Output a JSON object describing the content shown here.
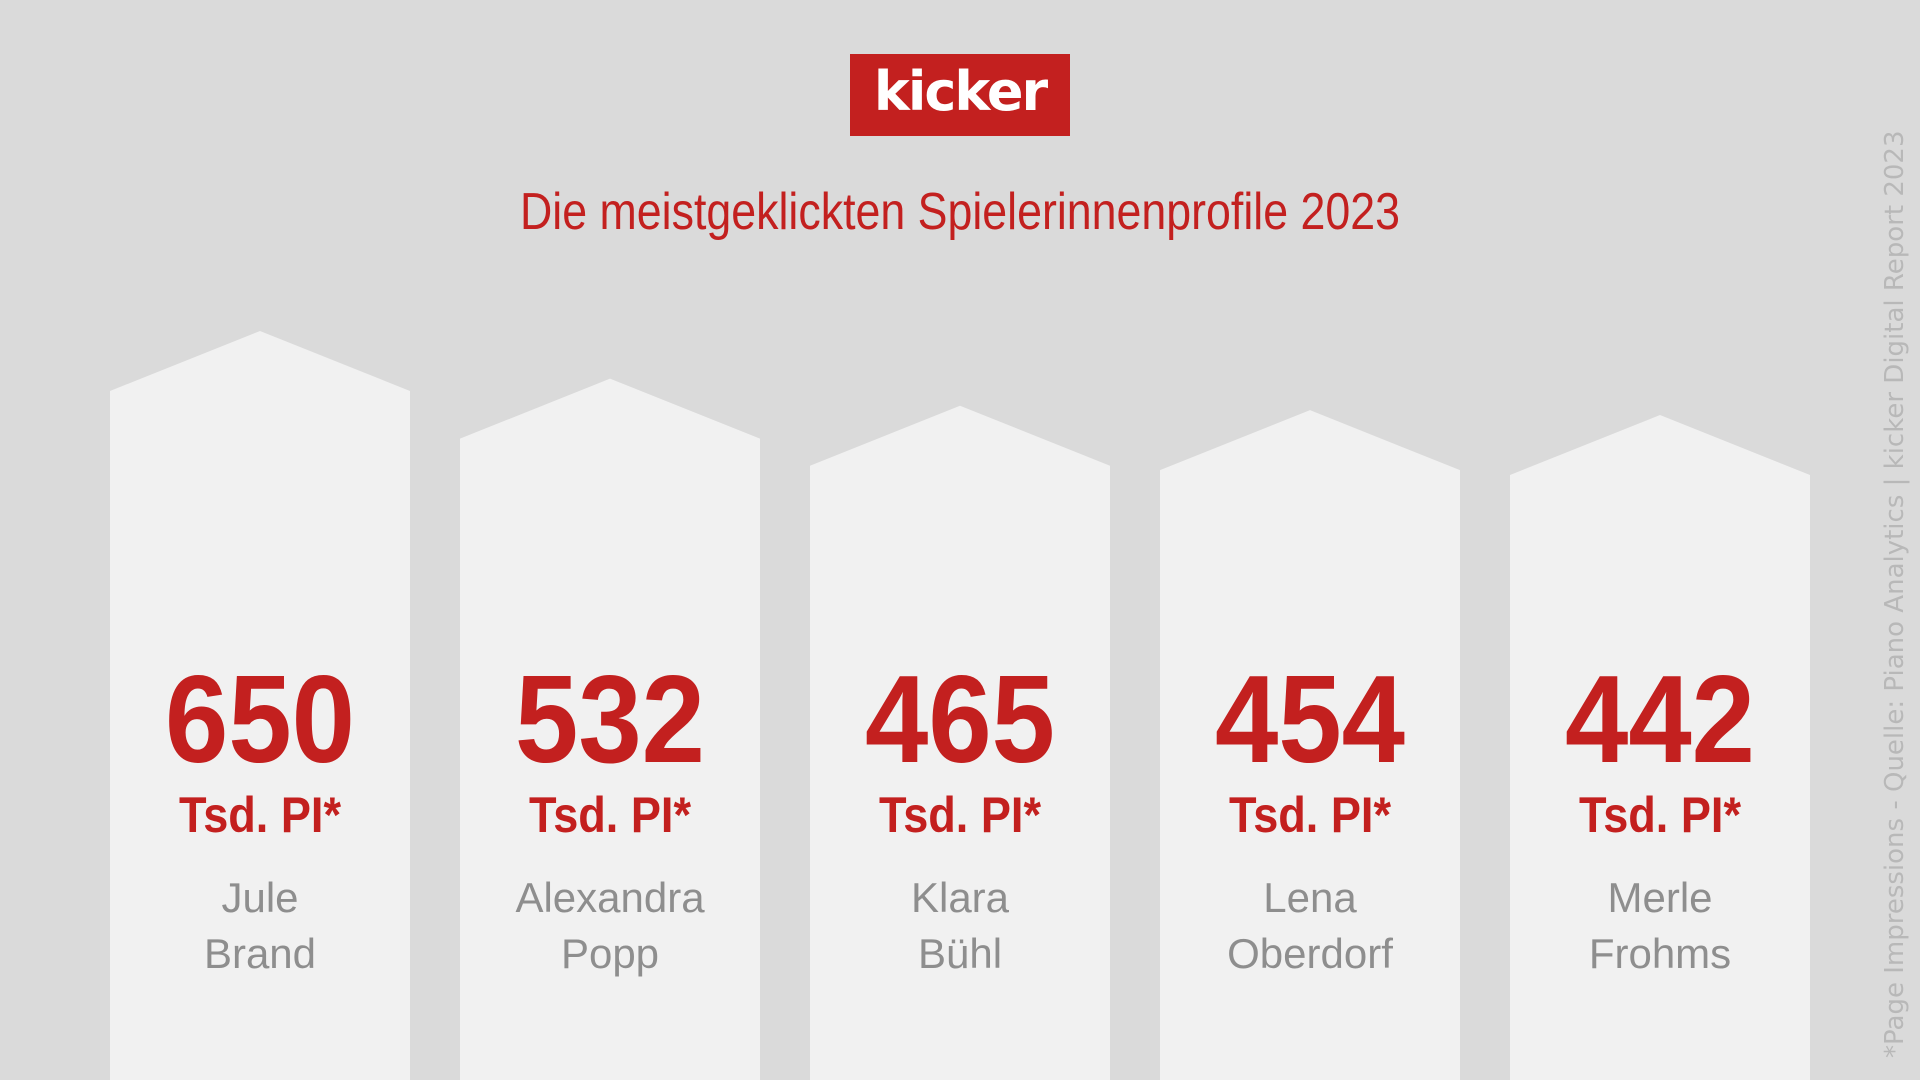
{
  "logo": {
    "text": "kicker"
  },
  "title": "Die meistgeklickten Spielerinnenprofile 2023",
  "source": "*Page Impressions - Quelle: Piano Analytics | kicker Digital Report 2023",
  "colors": {
    "background": "#dadada",
    "accent": "#c3201f",
    "bar": "#f1f1f1",
    "name": "#8e8e8e",
    "source": "#b8b8b8"
  },
  "chart_data": {
    "type": "bar",
    "title": "Die meistgeklickten Spielerinnenprofile 2023",
    "unit": "Tsd. PI*",
    "categories": [
      [
        "Jule",
        "Brand"
      ],
      [
        "Alexandra",
        "Popp"
      ],
      [
        "Klara",
        "Bühl"
      ],
      [
        "Lena",
        "Oberdorf"
      ],
      [
        "Merle",
        "Frohms"
      ]
    ],
    "values": [
      650,
      532,
      465,
      454,
      442
    ]
  }
}
